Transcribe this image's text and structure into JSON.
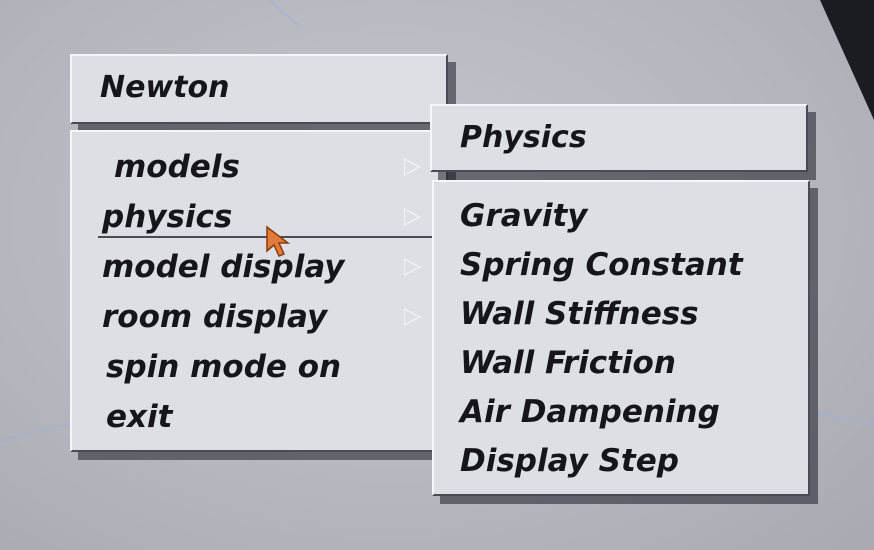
{
  "menu": {
    "title": "Newton",
    "items": [
      {
        "label": "models",
        "has_submenu": true
      },
      {
        "label": "physics",
        "has_submenu": true,
        "selected": true
      },
      {
        "label": "model display",
        "has_submenu": true
      },
      {
        "label": "room display",
        "has_submenu": true
      },
      {
        "label": "spin mode on",
        "has_submenu": false
      },
      {
        "label": "exit",
        "has_submenu": false
      }
    ]
  },
  "submenu": {
    "title": "Physics",
    "items": [
      {
        "label": "Gravity"
      },
      {
        "label": "Spring Constant"
      },
      {
        "label": "Wall Stiffness"
      },
      {
        "label": "Wall Friction"
      },
      {
        "label": "Air Dampening"
      },
      {
        "label": "Display Step"
      }
    ]
  },
  "colors": {
    "panel": "#dedee5",
    "background": "#b9b9c1",
    "text": "#15151b",
    "cursor": "#e07b3a"
  },
  "icons": {
    "submenu_arrow": "right-triangle-icon",
    "cursor": "mouse-pointer-icon"
  }
}
